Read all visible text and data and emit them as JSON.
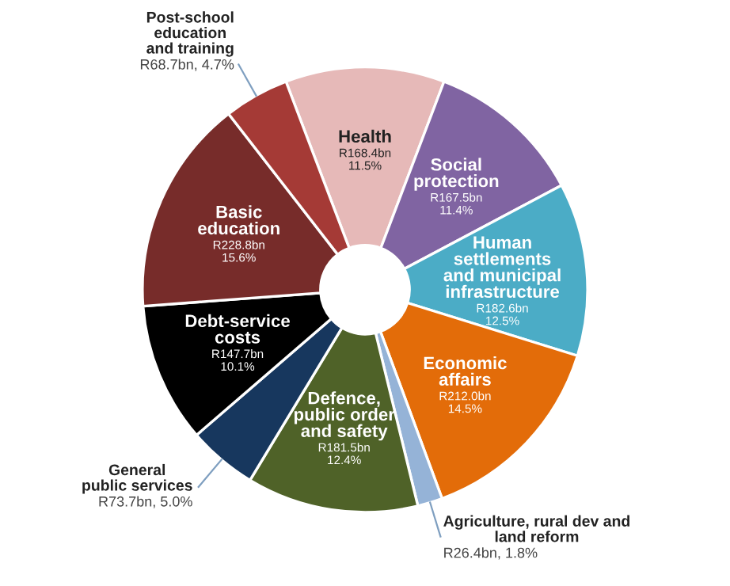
{
  "chart_data": {
    "type": "donut",
    "categories": [
      "Health",
      "Social\nprotection",
      "Human\nsettlements\nand municipal\ninfrastructure",
      "Economic\naffairs",
      "Agriculture, rural dev and\nland reform",
      "Defence,\npublic order\nand safety",
      "General\npublic services",
      "Debt-service\ncosts",
      "Basic\neducation",
      "Post-school\neducation\nand training"
    ],
    "values": [
      11.5,
      11.4,
      12.5,
      14.5,
      1.8,
      12.4,
      5.0,
      10.1,
      15.6,
      4.7
    ],
    "colors": [
      "#e6b9b8",
      "#8064a2",
      "#4bacc6",
      "#e36c09",
      "#95b3d7",
      "#4f6228",
      "#17375e",
      "#000000",
      "#772c2a",
      "#a53a36"
    ],
    "value_labels": [
      "R168.4bn\n11.5%",
      "R167.5bn\n11.4%",
      "R182.6bn\n12.5%",
      "R212.0bn\n14.5%",
      "R26.4bn, 1.8%",
      "R181.5bn\n12.4%",
      "R73.7bn, 5.0%",
      "R147.7bn\n10.1%",
      "R228.8bn\n15.6%",
      "R68.7bn, 4.7%"
    ]
  }
}
